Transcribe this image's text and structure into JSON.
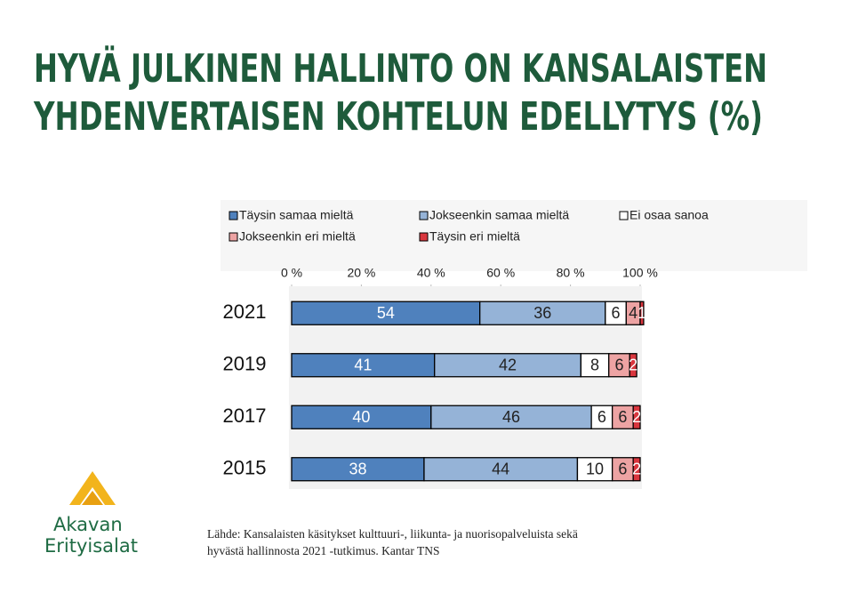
{
  "chart_data": {
    "type": "stacked-barh",
    "title": [
      "HYVÄ JULKINEN HALLINTO ON KANSALAISTEN",
      "YHDENVERTAISEN KOHTELUN EDELLYTYS (%)"
    ],
    "categories": [
      "2021",
      "2019",
      "2017",
      "2015"
    ],
    "series": [
      {
        "name": "Täysin samaa mieltä",
        "color": "#4f81bd",
        "values": [
          54,
          41,
          40,
          38
        ]
      },
      {
        "name": "Jokseenkin samaa mieltä",
        "color": "#95b3d7",
        "values": [
          36,
          42,
          46,
          44
        ]
      },
      {
        "name": "Ei osaa sanoa",
        "color": "#ffffff",
        "values": [
          6,
          8,
          6,
          10
        ]
      },
      {
        "name": "Jokseenkin eri mieltä",
        "color": "#eda3a3",
        "values": [
          4,
          6,
          6,
          6
        ]
      },
      {
        "name": "Täysin eri mieltä",
        "color": "#d9363e",
        "values": [
          1,
          2,
          2,
          2
        ]
      }
    ],
    "xlim": [
      0,
      100
    ],
    "xticks": [
      {
        "value": 0,
        "label": "0 %"
      },
      {
        "value": 20,
        "label": "20 %"
      },
      {
        "value": 40,
        "label": "40 %"
      },
      {
        "value": 60,
        "label": "60 %"
      },
      {
        "value": 80,
        "label": "80 %"
      },
      {
        "value": 100,
        "label": "100 %"
      }
    ],
    "legend": "top",
    "source": [
      "Lähde: Kansalaisten käsitykset kulttuuri-, liikunta- ja nuorisopalveluista sekä",
      "hyvästä hallinnosta 2021 -tutkimus. Kantar TNS"
    ]
  },
  "logo": [
    "Akavan",
    "Erityisalat"
  ]
}
